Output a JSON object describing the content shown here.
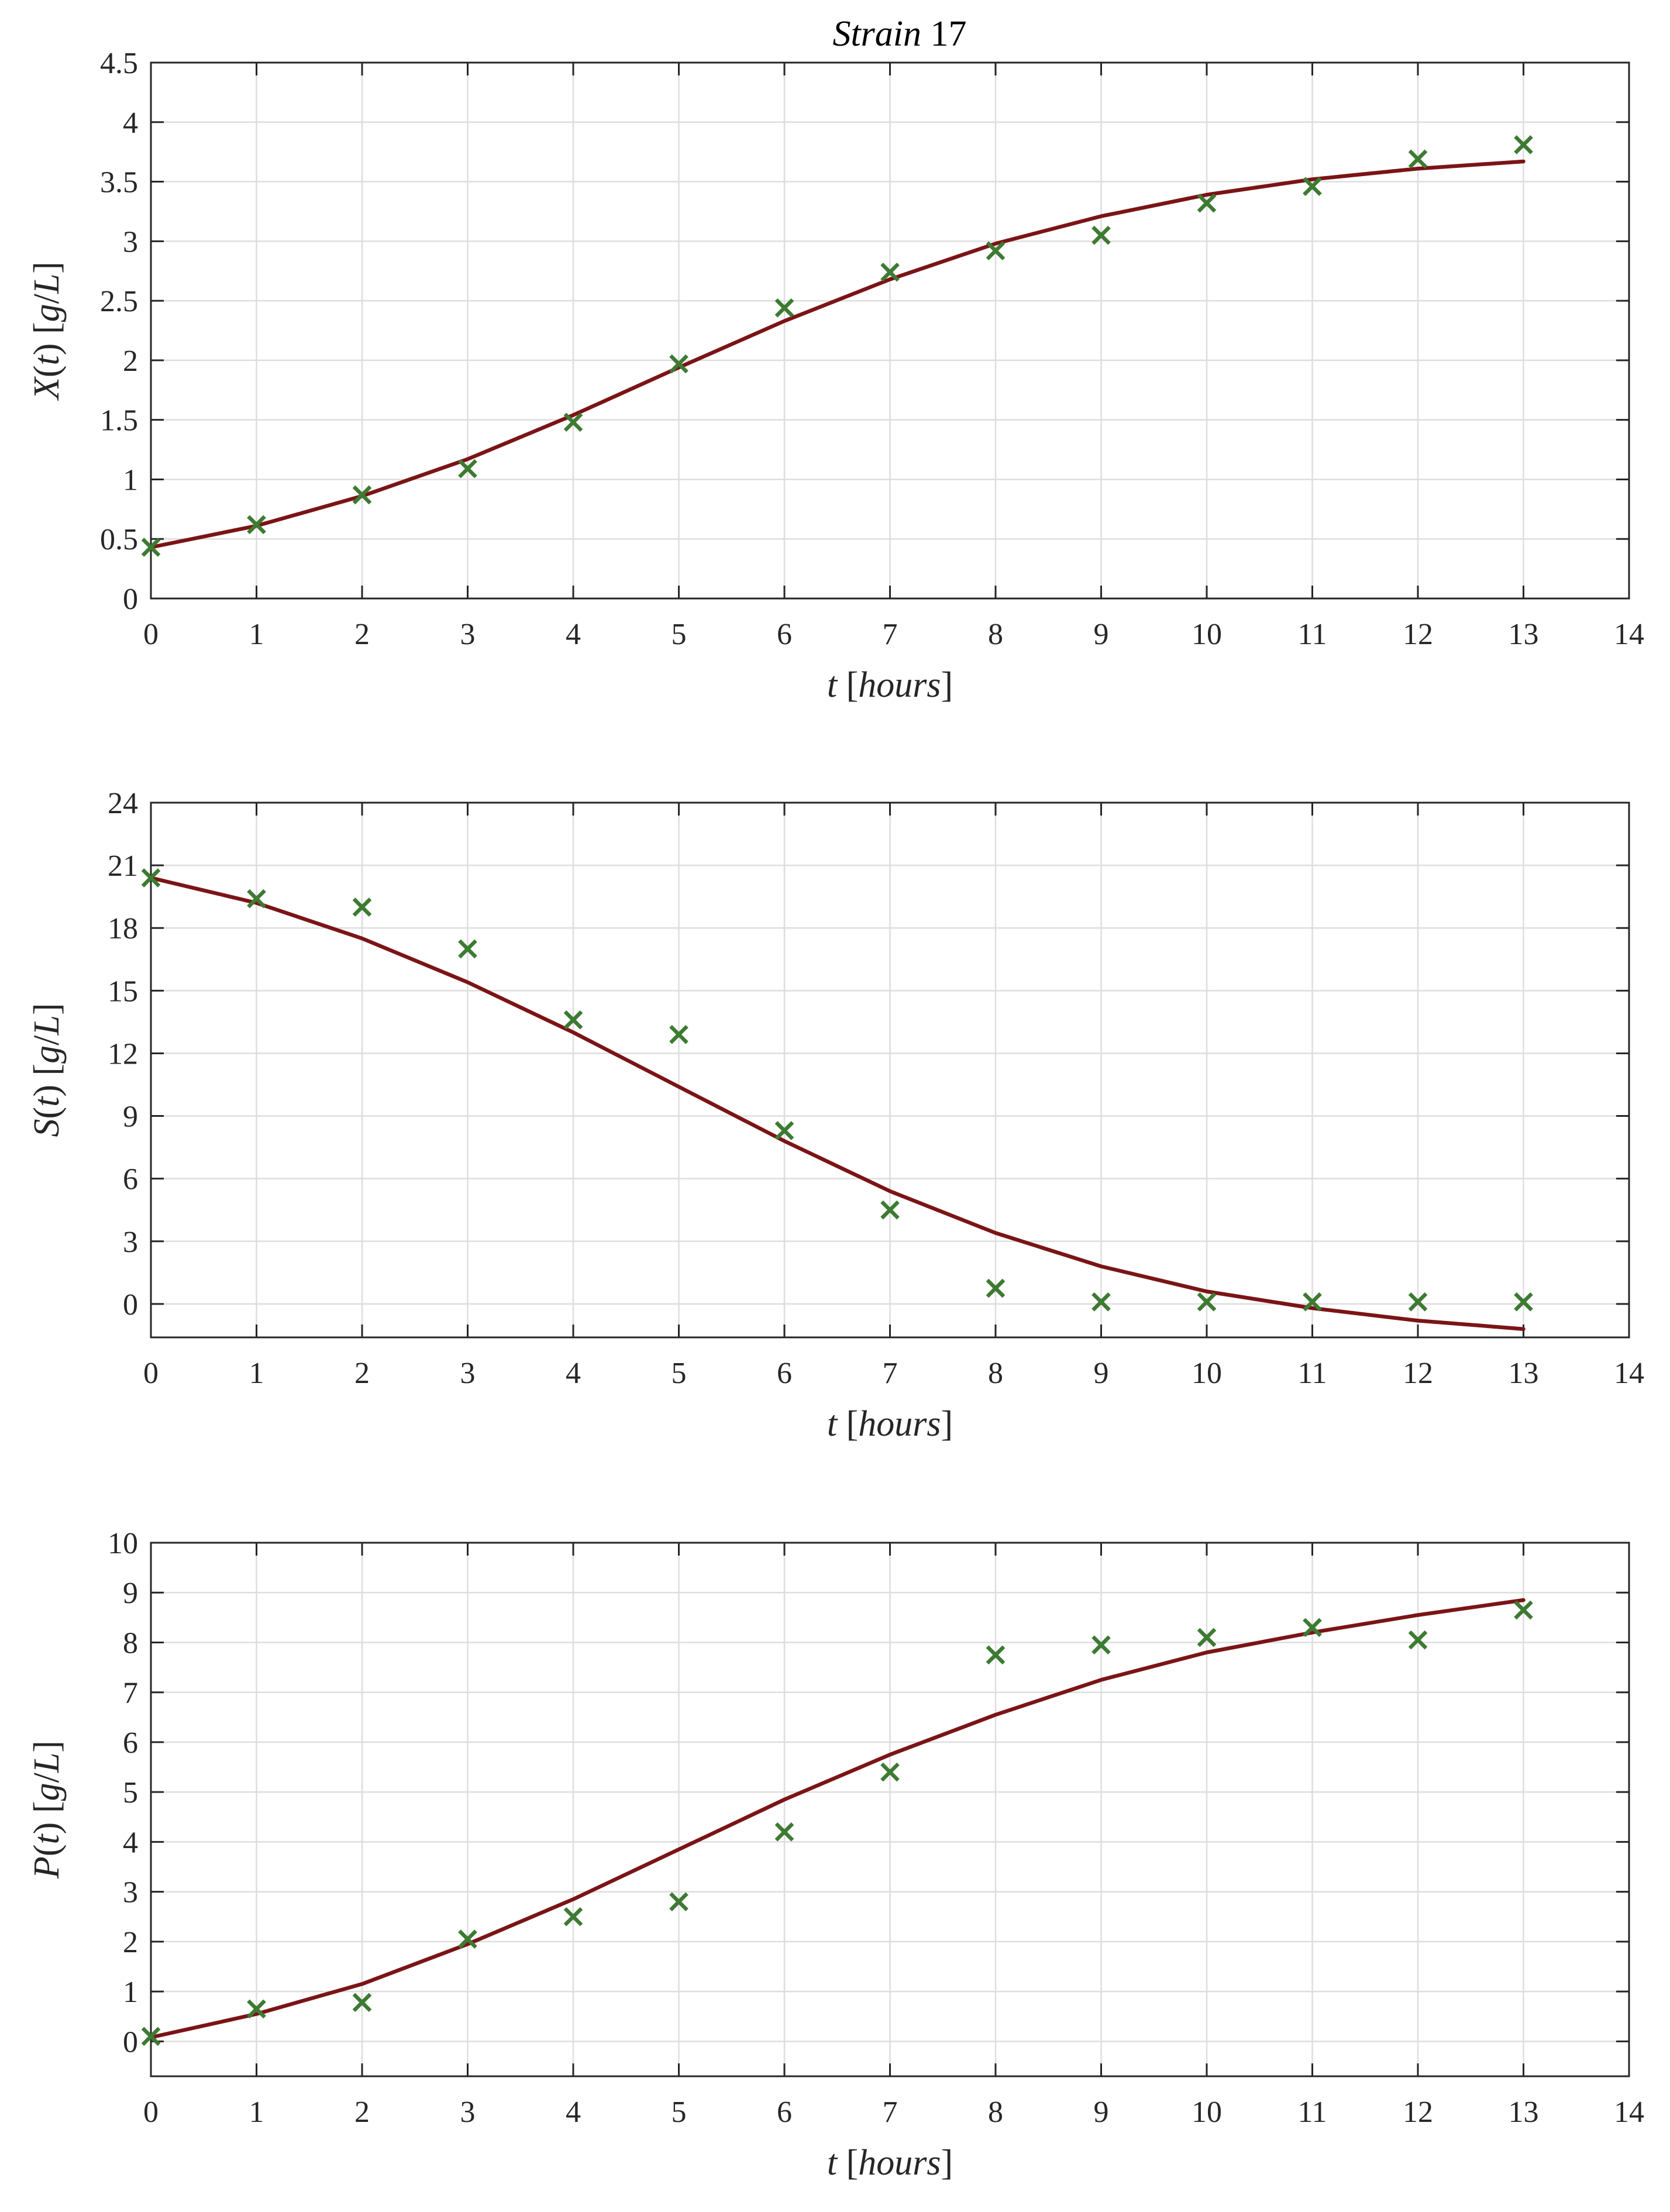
{
  "figure": {
    "title_italic": "Strain",
    "title_number": "17"
  },
  "colors": {
    "fit_line": "#7b1416",
    "markers": "#3d7a32",
    "axes": "#262626",
    "grid": "#dedede",
    "background": "#ffffff"
  },
  "chart_data": [
    {
      "type": "line",
      "title": "Strain 17",
      "ylabel": "X(t) [g/L]",
      "xlabel": "t [hours]",
      "xlim": [
        0,
        14
      ],
      "ylim": [
        0,
        4.5
      ],
      "xticks": [
        0,
        1,
        2,
        3,
        4,
        5,
        6,
        7,
        8,
        9,
        10,
        11,
        12,
        13,
        14
      ],
      "yticks": [
        0,
        0.5,
        1,
        1.5,
        2,
        2.5,
        3,
        3.5,
        4,
        4.5
      ],
      "grid": true,
      "series": [
        {
          "kind": "line",
          "x": [
            0,
            1,
            2,
            3,
            4,
            5,
            6,
            7,
            8,
            9,
            10,
            11,
            12,
            13
          ],
          "y": [
            0.43,
            0.61,
            0.86,
            1.17,
            1.54,
            1.94,
            2.33,
            2.68,
            2.98,
            3.21,
            3.39,
            3.52,
            3.61,
            3.67
          ]
        },
        {
          "kind": "scatter",
          "marker": "x",
          "x": [
            0,
            1,
            2,
            3,
            4,
            5,
            6,
            7,
            8,
            9,
            10,
            11,
            12,
            13
          ],
          "y": [
            0.43,
            0.62,
            0.87,
            1.09,
            1.48,
            1.97,
            2.44,
            2.74,
            2.92,
            3.05,
            3.32,
            3.46,
            3.69,
            3.81
          ]
        }
      ]
    },
    {
      "type": "line",
      "ylabel": "S(t) [g/L]",
      "xlabel": "t [hours]",
      "xlim": [
        0,
        14
      ],
      "ylim": [
        -1.6,
        24
      ],
      "xticks": [
        0,
        1,
        2,
        3,
        4,
        5,
        6,
        7,
        8,
        9,
        10,
        11,
        12,
        13,
        14
      ],
      "yticks": [
        0,
        3,
        6,
        9,
        12,
        15,
        18,
        21,
        24
      ],
      "grid": true,
      "series": [
        {
          "kind": "line",
          "x": [
            0,
            1,
            2,
            3,
            4,
            5,
            6,
            7,
            8,
            9,
            10,
            11,
            12,
            13
          ],
          "y": [
            20.4,
            19.2,
            17.5,
            15.4,
            13.0,
            10.4,
            7.8,
            5.4,
            3.4,
            1.8,
            0.6,
            -0.2,
            -0.8,
            -1.2
          ]
        },
        {
          "kind": "scatter",
          "marker": "x",
          "x": [
            0,
            1,
            2,
            3,
            4,
            5,
            6,
            7,
            8,
            9,
            10,
            11,
            12,
            13
          ],
          "y": [
            20.4,
            19.4,
            19.0,
            17.0,
            13.6,
            12.9,
            8.3,
            4.5,
            0.75,
            0.1,
            0.1,
            0.1,
            0.1,
            0.1
          ]
        }
      ]
    },
    {
      "type": "line",
      "ylabel": "P(t) [g/L]",
      "xlabel": "t [hours]",
      "xlim": [
        0,
        14
      ],
      "ylim": [
        -0.7,
        10
      ],
      "xticks": [
        0,
        1,
        2,
        3,
        4,
        5,
        6,
        7,
        8,
        9,
        10,
        11,
        12,
        13,
        14
      ],
      "yticks": [
        0,
        1,
        2,
        3,
        4,
        5,
        6,
        7,
        8,
        9,
        10
      ],
      "grid": true,
      "series": [
        {
          "kind": "line",
          "x": [
            0,
            1,
            2,
            3,
            4,
            5,
            6,
            7,
            8,
            9,
            10,
            11,
            12,
            13
          ],
          "y": [
            0.08,
            0.55,
            1.15,
            1.95,
            2.85,
            3.85,
            4.85,
            5.75,
            6.55,
            7.25,
            7.8,
            8.2,
            8.55,
            8.85
          ]
        },
        {
          "kind": "scatter",
          "marker": "x",
          "x": [
            0,
            1,
            2,
            3,
            4,
            5,
            6,
            7,
            8,
            9,
            10,
            11,
            12,
            13
          ],
          "y": [
            0.1,
            0.65,
            0.78,
            2.05,
            2.5,
            2.8,
            4.2,
            5.4,
            7.75,
            7.95,
            8.1,
            8.3,
            8.05,
            8.65
          ]
        }
      ]
    }
  ]
}
